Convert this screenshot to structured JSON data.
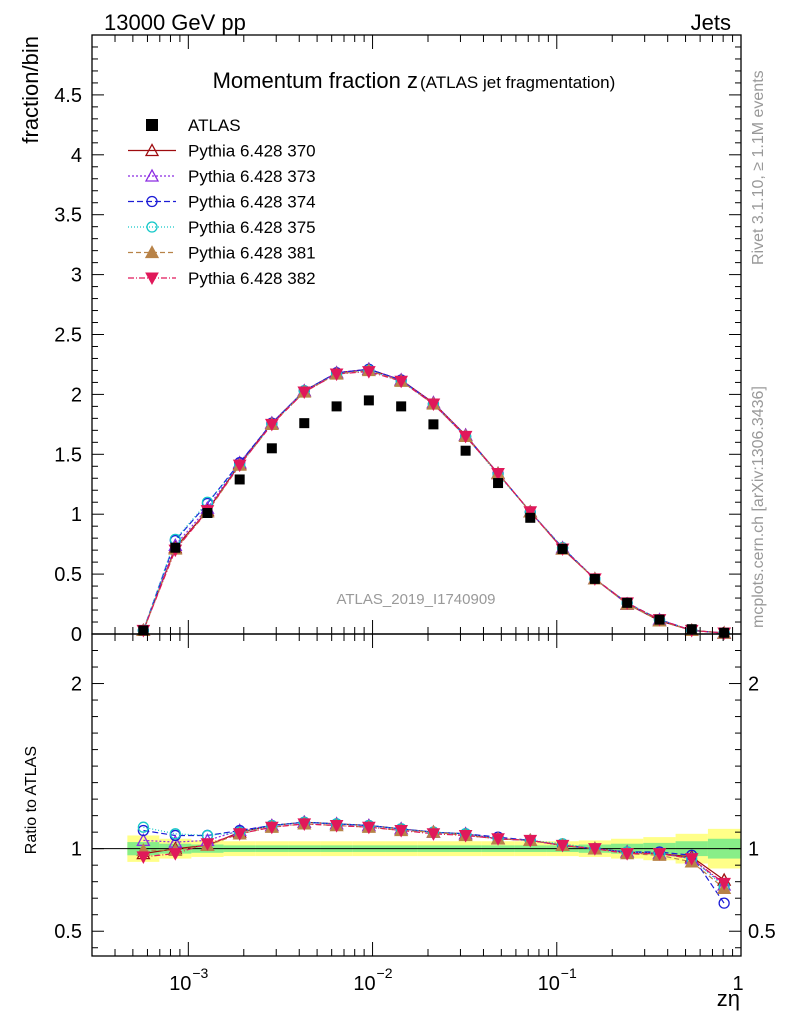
{
  "header": {
    "left": "13000 GeV pp",
    "right": "Jets"
  },
  "side_labels": {
    "rivet": "Rivet 3.1.10, ≥ 1.1M events",
    "mcplots": "mcplots.cern.ch [arXiv:1306.3436]"
  },
  "chart_data": {
    "type": "scatter",
    "title": "Momentum fraction z",
    "title_suffix": "(ATLAS jet fragmentation)",
    "analysis_label": "ATLAS_2019_I1740909",
    "xlabel": "zη",
    "ylabel": "fraction/bin",
    "ratio_ylabel": "Ratio to ATLAS",
    "x_scale": "log",
    "xlim": [
      0.0003,
      1.0
    ],
    "ylim": [
      0,
      5
    ],
    "ratio_ylim": [
      0.35,
      2.3
    ],
    "x_tick_labels": [
      "10",
      "10",
      "10",
      "1"
    ],
    "x_tick_exponents": [
      "−3",
      "−2",
      "−1",
      ""
    ],
    "y_tick_labels": [
      "0",
      "0.5",
      "1",
      "1.5",
      "2",
      "2.5",
      "3",
      "3.5",
      "4",
      "4.5"
    ],
    "ratio_tick_labels": [
      "0.5",
      "1",
      "2"
    ],
    "x": [
      0.00057,
      0.00085,
      0.00127,
      0.0019,
      0.00284,
      0.00426,
      0.00638,
      0.00955,
      0.0143,
      0.0214,
      0.032,
      0.048,
      0.0718,
      0.1075,
      0.161,
      0.241,
      0.361,
      0.54,
      0.81
    ],
    "atlas": [
      0.03,
      0.72,
      1.01,
      1.29,
      1.55,
      1.76,
      1.9,
      1.95,
      1.9,
      1.75,
      1.53,
      1.26,
      0.97,
      0.71,
      0.46,
      0.26,
      0.12,
      0.04,
      0.01
    ],
    "series": [
      {
        "name": "Pythia 6.428 370",
        "color": "#9e0b0f",
        "marker": "triangle-open",
        "dash": "",
        "values": [
          0.03,
          0.72,
          1.03,
          1.42,
          1.76,
          2.03,
          2.18,
          2.21,
          2.12,
          1.93,
          1.66,
          1.34,
          1.02,
          0.71,
          0.46,
          0.25,
          0.11,
          0.03,
          0.008
        ],
        "ratio": [
          0.97,
          1.0,
          1.02,
          1.1,
          1.14,
          1.16,
          1.15,
          1.14,
          1.12,
          1.1,
          1.09,
          1.06,
          1.05,
          1.02,
          1.0,
          0.98,
          0.97,
          0.95,
          0.81
        ]
      },
      {
        "name": "Pythia 6.428 373",
        "color": "#8b2be2",
        "marker": "triangle-open",
        "dash": "2,2",
        "values": [
          0.03,
          0.74,
          1.05,
          1.43,
          1.76,
          2.03,
          2.18,
          2.21,
          2.12,
          1.93,
          1.66,
          1.34,
          1.02,
          0.72,
          0.46,
          0.25,
          0.12,
          0.03,
          0.008
        ],
        "ratio": [
          1.05,
          1.04,
          1.05,
          1.11,
          1.14,
          1.16,
          1.15,
          1.14,
          1.12,
          1.1,
          1.09,
          1.06,
          1.05,
          1.02,
          1.0,
          0.98,
          0.97,
          0.94,
          0.78
        ]
      },
      {
        "name": "Pythia 6.428 374",
        "color": "#1c1cd6",
        "marker": "circle-open",
        "dash": "6,3",
        "values": [
          0.03,
          0.78,
          1.09,
          1.43,
          1.76,
          2.03,
          2.18,
          2.21,
          2.12,
          1.92,
          1.65,
          1.34,
          1.02,
          0.72,
          0.46,
          0.26,
          0.12,
          0.03,
          0.007
        ],
        "ratio": [
          1.11,
          1.08,
          1.08,
          1.11,
          1.14,
          1.16,
          1.15,
          1.14,
          1.12,
          1.1,
          1.09,
          1.07,
          1.05,
          1.02,
          1.0,
          0.98,
          0.98,
          0.96,
          0.67
        ]
      },
      {
        "name": "Pythia 6.428 375",
        "color": "#14c8c8",
        "marker": "circle-open",
        "dash": "1,2",
        "values": [
          0.03,
          0.79,
          1.1,
          1.41,
          1.75,
          2.03,
          2.17,
          2.2,
          2.11,
          1.92,
          1.65,
          1.33,
          1.02,
          0.72,
          0.46,
          0.26,
          0.12,
          0.03,
          0.008
        ],
        "ratio": [
          1.13,
          1.09,
          1.08,
          1.1,
          1.14,
          1.16,
          1.15,
          1.14,
          1.12,
          1.1,
          1.09,
          1.06,
          1.05,
          1.03,
          1.0,
          0.98,
          0.97,
          0.94,
          0.77
        ]
      },
      {
        "name": "Pythia 6.428 381",
        "color": "#b88348",
        "marker": "triangle-filled",
        "dash": "5,3",
        "values": [
          0.03,
          0.71,
          1.02,
          1.41,
          1.75,
          2.02,
          2.17,
          2.2,
          2.11,
          1.92,
          1.65,
          1.34,
          1.02,
          0.71,
          0.46,
          0.25,
          0.11,
          0.03,
          0.008
        ],
        "ratio": [
          0.99,
          0.99,
          1.02,
          1.09,
          1.13,
          1.15,
          1.14,
          1.13,
          1.11,
          1.1,
          1.08,
          1.06,
          1.05,
          1.02,
          1.0,
          0.97,
          0.96,
          0.92,
          0.76
        ]
      },
      {
        "name": "Pythia 6.428 382",
        "color": "#e0185a",
        "marker": "triangle-down-filled",
        "dash": "6,2,1,2",
        "values": [
          0.03,
          0.7,
          1.03,
          1.41,
          1.75,
          2.02,
          2.17,
          2.19,
          2.11,
          1.92,
          1.65,
          1.34,
          1.02,
          0.71,
          0.46,
          0.26,
          0.12,
          0.03,
          0.008
        ],
        "ratio": [
          0.95,
          0.97,
          1.03,
          1.09,
          1.13,
          1.15,
          1.14,
          1.13,
          1.11,
          1.09,
          1.08,
          1.06,
          1.05,
          1.02,
          1.0,
          0.97,
          0.97,
          0.94,
          0.79
        ]
      }
    ],
    "ratio_band_yellow": [
      0.08,
      0.06,
      0.05,
      0.045,
      0.045,
      0.045,
      0.045,
      0.045,
      0.045,
      0.045,
      0.045,
      0.045,
      0.045,
      0.045,
      0.05,
      0.06,
      0.07,
      0.09,
      0.12
    ],
    "ratio_band_green": [
      0.04,
      0.03,
      0.025,
      0.02,
      0.02,
      0.02,
      0.02,
      0.02,
      0.02,
      0.02,
      0.02,
      0.02,
      0.02,
      0.02,
      0.025,
      0.03,
      0.035,
      0.045,
      0.06
    ],
    "band_colors": {
      "yellow": "#ffff88",
      "green": "#88ee88"
    }
  }
}
